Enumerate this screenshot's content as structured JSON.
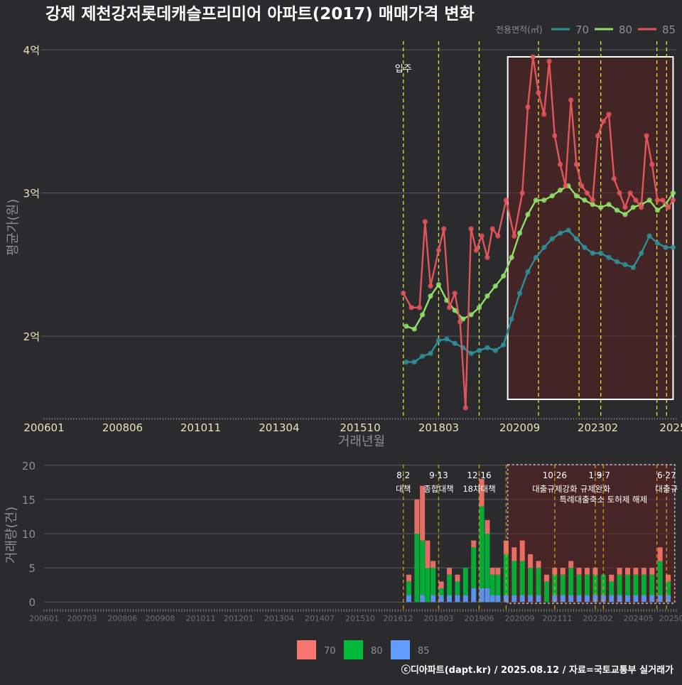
{
  "colors": {
    "background": "#2b2b2d",
    "grid": "#5a5a5e",
    "tick_label": "#e9e2b8",
    "axis_title": "#8e8e92",
    "series70": "#2e8f98",
    "series80": "#8fe06a",
    "series85": "#e2555a",
    "bar70": "#f8766d",
    "bar80": "#00ba38",
    "bar85": "#619cff",
    "policy_line": "#e6e632",
    "policy_line_lower": "#e8a317",
    "highlight_fill": "#5a2020"
  },
  "chart_data": [
    {
      "type": "line",
      "title": "강제 제천강저롯데캐슬프리미어 아파트(2017) 매매가격 변화",
      "xlabel": "거래년월",
      "ylabel": "평균가(원)",
      "legend_title": "전용면적(㎡)",
      "legend": [
        "70",
        "80",
        "85"
      ],
      "yticks": [
        "4억",
        "3억",
        "2억"
      ],
      "ytick_values": [
        4.0,
        3.0,
        2.0
      ],
      "ylim": [
        1.43,
        4.1
      ],
      "xticks": [
        "200601",
        "200806",
        "201011",
        "201304",
        "201510",
        "201803",
        "202009",
        "202302",
        "2025"
      ],
      "xtick_values": [
        2006.0,
        2008.42,
        2010.83,
        2013.25,
        2015.75,
        2018.17,
        2020.67,
        2023.08,
        2025.4
      ],
      "xlim": [
        2006.0,
        2025.5
      ],
      "annotation": "입주",
      "annotation_x": 2017.08,
      "highlight_range": [
        2020.3,
        2025.4
      ],
      "policy_lines": [
        2017.08,
        2018.17,
        2019.42,
        2021.25,
        2022.5,
        2023.17,
        2024.9,
        2025.2
      ],
      "series": [
        {
          "name": "70",
          "x": [
            2017.17,
            2017.42,
            2017.67,
            2017.92,
            2018.17,
            2018.42,
            2018.67,
            2018.92,
            2019.17,
            2019.42,
            2019.67,
            2019.92,
            2020.17,
            2020.42,
            2020.67,
            2020.92,
            2021.17,
            2021.42,
            2021.67,
            2021.92,
            2022.17,
            2022.42,
            2022.67,
            2022.92,
            2023.17,
            2023.42,
            2023.67,
            2023.92,
            2024.17,
            2024.42,
            2024.67,
            2024.92,
            2025.17,
            2025.4
          ],
          "values": [
            1.82,
            1.82,
            1.86,
            1.88,
            1.97,
            1.98,
            1.95,
            1.92,
            1.88,
            1.9,
            1.92,
            1.9,
            1.94,
            2.12,
            2.3,
            2.45,
            2.55,
            2.62,
            2.68,
            2.72,
            2.74,
            2.68,
            2.62,
            2.58,
            2.58,
            2.55,
            2.52,
            2.5,
            2.48,
            2.58,
            2.7,
            2.65,
            2.62,
            2.62
          ]
        },
        {
          "name": "80",
          "x": [
            2017.17,
            2017.42,
            2017.67,
            2017.92,
            2018.17,
            2018.42,
            2018.67,
            2018.92,
            2019.17,
            2019.42,
            2019.67,
            2019.92,
            2020.17,
            2020.42,
            2020.67,
            2020.92,
            2021.17,
            2021.42,
            2021.67,
            2021.92,
            2022.17,
            2022.42,
            2022.67,
            2022.92,
            2023.17,
            2023.42,
            2023.67,
            2023.92,
            2024.17,
            2024.42,
            2024.67,
            2024.92,
            2025.17,
            2025.4
          ],
          "values": [
            2.07,
            2.05,
            2.15,
            2.28,
            2.36,
            2.25,
            2.18,
            2.12,
            2.15,
            2.2,
            2.28,
            2.35,
            2.42,
            2.55,
            2.72,
            2.85,
            2.95,
            2.95,
            2.98,
            3.02,
            3.05,
            2.98,
            2.95,
            2.92,
            2.9,
            2.92,
            2.88,
            2.85,
            2.9,
            2.92,
            2.95,
            2.88,
            2.92,
            3.0
          ]
        },
        {
          "name": "85",
          "x": [
            2017.08,
            2017.33,
            2017.58,
            2017.75,
            2017.92,
            2018.17,
            2018.33,
            2018.5,
            2018.67,
            2018.83,
            2019.0,
            2019.17,
            2019.33,
            2019.5,
            2019.67,
            2019.83,
            2020.0,
            2020.25,
            2020.5,
            2020.75,
            2020.92,
            2021.08,
            2021.25,
            2021.42,
            2021.58,
            2021.75,
            2021.92,
            2022.08,
            2022.25,
            2022.42,
            2022.58,
            2022.75,
            2022.92,
            2023.08,
            2023.25,
            2023.42,
            2023.58,
            2023.75,
            2023.92,
            2024.08,
            2024.25,
            2024.42,
            2024.58,
            2024.75,
            2024.92,
            2025.08,
            2025.25,
            2025.4
          ],
          "values": [
            2.3,
            2.2,
            2.2,
            2.8,
            2.35,
            2.6,
            2.75,
            2.2,
            2.3,
            2.1,
            1.5,
            2.75,
            2.6,
            2.7,
            2.55,
            2.75,
            2.7,
            2.95,
            2.7,
            3.0,
            3.6,
            3.95,
            3.7,
            3.55,
            3.92,
            3.4,
            3.2,
            3.05,
            3.65,
            3.2,
            3.05,
            3.0,
            2.95,
            3.4,
            3.5,
            3.55,
            3.1,
            3.0,
            2.9,
            3.0,
            2.95,
            2.9,
            3.4,
            3.2,
            2.95,
            2.95,
            2.9,
            2.95
          ]
        }
      ]
    },
    {
      "type": "bar",
      "title": "",
      "xlabel": "",
      "ylabel": "거래량(건)",
      "yticks": [
        "20",
        "15",
        "10",
        "5",
        "0"
      ],
      "ytick_values": [
        20,
        15,
        10,
        5,
        0
      ],
      "ylim": [
        0,
        20.5
      ],
      "xticks": [
        "200601",
        "200703",
        "200806",
        "200908",
        "201011",
        "201201",
        "201304",
        "201407",
        "201510",
        "201612",
        "201803",
        "201906",
        "202009",
        "202111",
        "202302",
        "202405",
        "20250"
      ],
      "xtick_values": [
        2006.0,
        2007.17,
        2008.42,
        2009.58,
        2010.83,
        2012.0,
        2013.25,
        2014.5,
        2015.75,
        2016.92,
        2018.17,
        2019.42,
        2020.67,
        2021.83,
        2023.08,
        2024.33,
        2025.35
      ],
      "xlim": [
        2006.0,
        2025.5
      ],
      "legend": [
        "70",
        "80",
        "85"
      ],
      "highlight_range": [
        2020.3,
        2025.45
      ],
      "policy_lines": [
        {
          "x": 2017.08,
          "date": "8·2",
          "name": "대책"
        },
        {
          "x": 2018.17,
          "date": "9·13",
          "name": "종합대책"
        },
        {
          "x": 2019.42,
          "date": "12·16",
          "name": "18차대책"
        },
        {
          "x": 2020.25,
          "date": "",
          "name": ""
        },
        {
          "x": 2021.75,
          "date": "10·26",
          "name": "대출규제강화"
        },
        {
          "x": 2023.0,
          "date": "1·3",
          "name": "규제완화"
        },
        {
          "x": 2023.25,
          "date": "9·7",
          "name": "특례대출축소 토허제 해제"
        },
        {
          "x": 2024.9,
          "date": "",
          "name": ""
        },
        {
          "x": 2025.2,
          "date": "6·27",
          "name": "대출규"
        }
      ],
      "series": [
        {
          "name": "70",
          "x": [
            2017.25,
            2017.5,
            2017.67,
            2017.83,
            2018.0,
            2018.25,
            2018.5,
            2018.75,
            2019.0,
            2019.25,
            2019.5,
            2019.67,
            2019.83,
            2020.0,
            2020.25,
            2020.5,
            2020.75,
            2021.0,
            2021.25,
            2021.5,
            2021.75,
            2022.0,
            2022.25,
            2022.5,
            2022.75,
            2023.0,
            2023.25,
            2023.5,
            2023.75,
            2024.0,
            2024.25,
            2024.5,
            2024.75,
            2025.0,
            2025.25
          ],
          "values": [
            1,
            5,
            8,
            4,
            1,
            1,
            1,
            1,
            0,
            1,
            4,
            2,
            1,
            1,
            2,
            2,
            3,
            2,
            1,
            1,
            1,
            1,
            1,
            1,
            1,
            1,
            0,
            1,
            1,
            1,
            1,
            1,
            1,
            2,
            1
          ]
        },
        {
          "name": "80",
          "x": [
            2017.25,
            2017.5,
            2017.67,
            2017.83,
            2018.0,
            2018.25,
            2018.5,
            2018.75,
            2019.0,
            2019.25,
            2019.5,
            2019.67,
            2019.83,
            2020.0,
            2020.25,
            2020.5,
            2020.75,
            2021.0,
            2021.25,
            2021.5,
            2021.75,
            2022.0,
            2022.25,
            2022.5,
            2022.75,
            2023.0,
            2023.25,
            2023.5,
            2023.75,
            2024.0,
            2024.25,
            2024.5,
            2024.75,
            2025.0,
            2025.25
          ],
          "values": [
            2,
            10,
            8,
            5,
            4,
            1,
            3,
            2,
            4,
            6,
            12,
            8,
            3,
            3,
            6,
            5,
            5,
            4,
            4,
            3,
            3,
            3,
            4,
            3,
            3,
            3,
            3,
            2,
            3,
            3,
            3,
            3,
            3,
            5,
            2
          ]
        },
        {
          "name": "85",
          "x": [
            2017.25,
            2017.5,
            2017.67,
            2017.83,
            2018.0,
            2018.25,
            2018.5,
            2018.75,
            2019.0,
            2019.25,
            2019.5,
            2019.67,
            2019.83,
            2020.0,
            2020.25,
            2020.5,
            2020.75,
            2021.0,
            2021.25,
            2021.5,
            2021.75,
            2022.0,
            2022.25,
            2022.5,
            2022.75,
            2023.0,
            2023.25,
            2023.5,
            2023.75,
            2024.0,
            2024.25,
            2024.5,
            2024.75,
            2025.0,
            2025.25
          ],
          "values": [
            1,
            0,
            1,
            0,
            1,
            1,
            1,
            1,
            1,
            2,
            2,
            2,
            1,
            1,
            1,
            1,
            1,
            1,
            1,
            0,
            1,
            1,
            1,
            1,
            1,
            1,
            1,
            1,
            1,
            1,
            1,
            1,
            1,
            1,
            1
          ]
        }
      ]
    }
  ],
  "footer": {
    "credit": "ⓒ디아파트(dapt.kr) / 2025.08.12 / 자료=국토교통부 실거래가"
  }
}
